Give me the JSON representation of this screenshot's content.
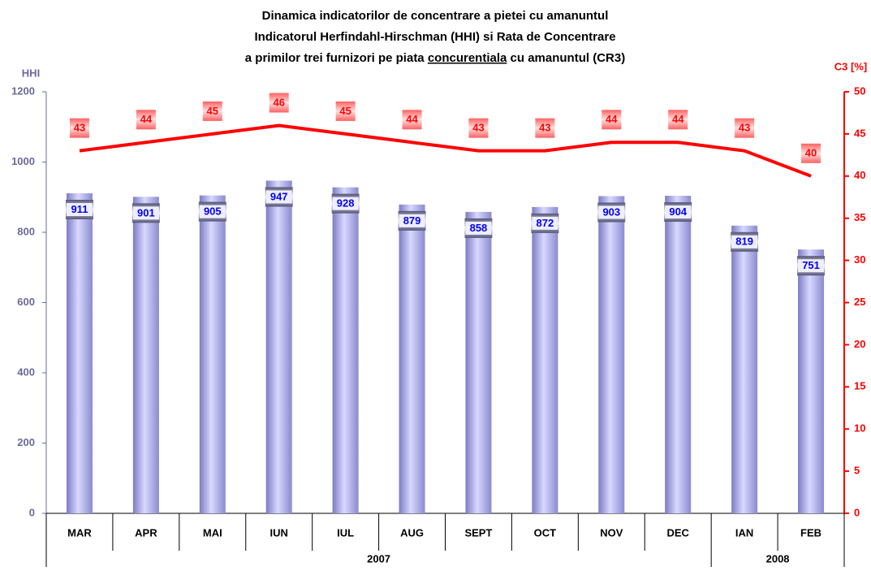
{
  "chart_data": {
    "type": "bar-line",
    "title": [
      "Dinamica indicatorilor de concentrare a pietei cu amanuntul",
      "Indicatorul Herfindahl-Hirschman (HHI) si Rata de Concentrare"
    ],
    "title_line3": [
      "a primilor trei furnizori pe piata",
      "concurentiala",
      "cu amanuntul (CR3)"
    ],
    "y_label": "HHI",
    "y2_label": "C3 [%]",
    "categories": [
      "MAR",
      "APR",
      "MAI",
      "IUN",
      "IUL",
      "AUG",
      "SEPT",
      "OCT",
      "NOV",
      "DEC",
      "IAN",
      "FEB"
    ],
    "year_groups": [
      {
        "label": "2007",
        "span": 10
      },
      {
        "label": "2008",
        "span": 2
      }
    ],
    "series": [
      {
        "name": "HHI",
        "type": "bar",
        "color": "#a8a8ee",
        "values": [
          911,
          901,
          905,
          947,
          928,
          879,
          858,
          872,
          903,
          904,
          819,
          751
        ]
      },
      {
        "name": "C3",
        "type": "line",
        "axis": "y2",
        "color": "#ff0000",
        "values": [
          43,
          44,
          45,
          46,
          45,
          44,
          43,
          43,
          44,
          44,
          43,
          40
        ]
      }
    ],
    "ylim": [
      0,
      1200
    ],
    "yticks": [
      0,
      200,
      400,
      600,
      800,
      1000,
      1200
    ],
    "y2lim": [
      0,
      50
    ],
    "y2ticks": [
      0,
      5,
      10,
      15,
      20,
      25,
      30,
      35,
      40,
      45,
      50
    ]
  }
}
